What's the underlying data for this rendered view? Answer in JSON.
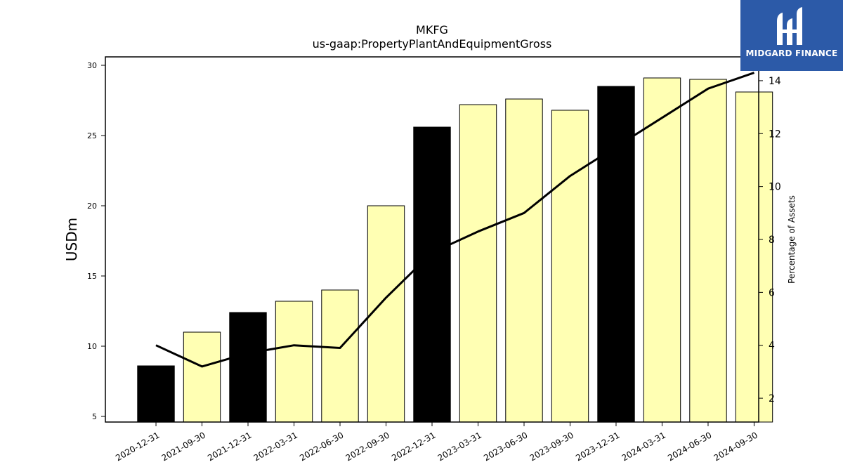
{
  "chart_data": {
    "type": "bar",
    "title": "MKFG",
    "subtitle": "us-gaap:PropertyPlantAndEquipmentGross",
    "ylabel": "USDm",
    "y2label": "Percentage of Assets",
    "categories": [
      "2020-12-31",
      "2021-09-30",
      "2021-12-31",
      "2022-03-31",
      "2022-06-30",
      "2022-09-30",
      "2022-12-31",
      "2023-03-31",
      "2023-06-30",
      "2023-09-30",
      "2023-12-31",
      "2024-03-31",
      "2024-06-30",
      "2024-09-30"
    ],
    "series": [
      {
        "type": "bar",
        "values": [
          8.6,
          11.0,
          12.4,
          13.2,
          14.0,
          20.0,
          25.6,
          27.2,
          27.6,
          26.8,
          28.5,
          29.1,
          29.0,
          28.1
        ],
        "colors": [
          "#000000",
          "#ffffb3",
          "#000000",
          "#ffffb3",
          "#ffffb3",
          "#ffffb3",
          "#000000",
          "#ffffb3",
          "#ffffb3",
          "#ffffb3",
          "#000000",
          "#ffffb3",
          "#ffffb3",
          "#ffffb3"
        ]
      },
      {
        "type": "line",
        "axis": "right",
        "values": [
          4.0,
          3.2,
          3.7,
          4.0,
          3.9,
          5.8,
          7.5,
          8.3,
          9.0,
          10.4,
          11.5,
          12.6,
          13.7,
          14.3
        ]
      }
    ],
    "ylim": [
      4.6,
      30.6
    ],
    "y2lim": [
      1.1,
      14.9
    ],
    "yticks": [
      5,
      10,
      15,
      20,
      25,
      30
    ],
    "y2ticks": [
      2,
      4,
      6,
      8,
      10,
      12,
      14
    ],
    "grid": false
  },
  "logo": {
    "text": "MIDGARD FINANCE",
    "background": "#2c5aa8"
  }
}
